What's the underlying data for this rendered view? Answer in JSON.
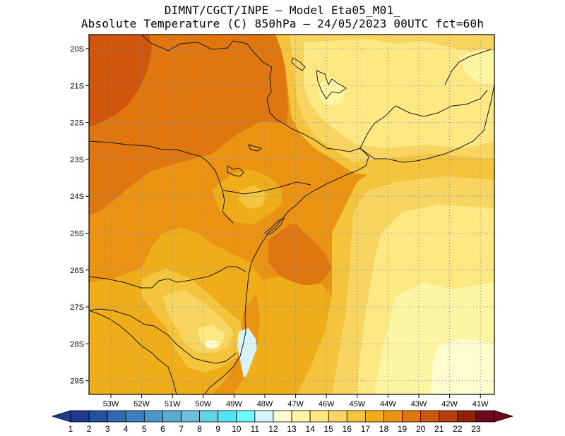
{
  "title": {
    "line1": "DIMNT/CGCT/INPE –  Model Eta05_M01_",
    "line2": "Absolute Temperature (C) 850hPa –  24/05/2023 00UTC fct=60h"
  },
  "axes": {
    "lat_labels": [
      "20S",
      "21S",
      "22S",
      "23S",
      "24S",
      "25S",
      "26S",
      "27S",
      "28S",
      "29S"
    ],
    "lon_labels": [
      "53W",
      "52W",
      "51W",
      "50W",
      "49W",
      "48W",
      "47W",
      "46W",
      "45W",
      "44W",
      "43W",
      "42W",
      "41W"
    ]
  },
  "colorbar": {
    "labels": [
      "1",
      "2",
      "3",
      "4",
      "5",
      "6",
      "7",
      "8",
      "9",
      "10",
      "11",
      "12",
      "13",
      "14",
      "15",
      "16",
      "17",
      "18",
      "19",
      "20",
      "21",
      "22",
      "23"
    ],
    "colors": [
      "#1c3a8e",
      "#24529e",
      "#2f6aae",
      "#3d80bd",
      "#4b96c9",
      "#5aaad4",
      "#6cc0de",
      "#5dd6e8",
      "#4ee6f2",
      "#6ff7fb",
      "#d8f4fa",
      "#fffccf",
      "#fef5a2",
      "#fde884",
      "#f8d561",
      "#f4c43c",
      "#efad1a",
      "#ea9313",
      "#e0760f",
      "#cf560b",
      "#b33e0a",
      "#8f2209",
      "#6d0b1a"
    ]
  },
  "map": {
    "colors": {
      "t10": "#d8f4fa",
      "t11": "#fffccf",
      "t12": "#fef5a2",
      "t13": "#fde884",
      "t14": "#f8d561",
      "t15": "#f4c43c",
      "t16": "#efad1a",
      "t17": "#ea9313",
      "t18": "#e0760f",
      "t19": "#cf560b",
      "border": "#1a1a1a",
      "grid": "#8a8a8a"
    }
  }
}
